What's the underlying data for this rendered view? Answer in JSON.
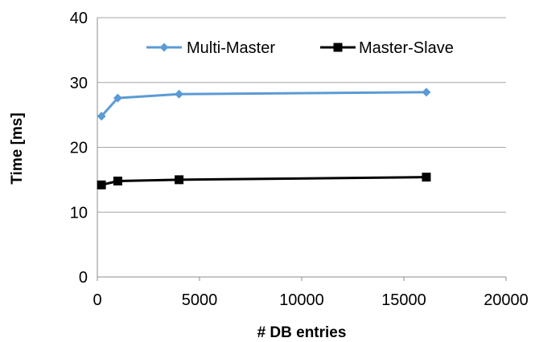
{
  "chart_data": {
    "type": "line",
    "title": "",
    "xlabel": "# DB entries",
    "ylabel": "Time [ms]",
    "xlim": [
      0,
      20000
    ],
    "ylim": [
      0,
      40
    ],
    "x_ticks": [
      0,
      5000,
      10000,
      15000,
      20000
    ],
    "y_ticks": [
      0,
      10,
      20,
      30,
      40
    ],
    "x_tick_labels": [
      "0",
      "5000",
      "10000",
      "15000",
      "20000"
    ],
    "y_tick_labels": [
      "0",
      "10",
      "20",
      "30",
      "40"
    ],
    "grid": "horizontal",
    "legend_position": "top",
    "series": [
      {
        "name": "Multi-Master",
        "color": "#5b9bd5",
        "marker": "diamond",
        "x": [
          200,
          1000,
          4000,
          16100
        ],
        "y": [
          24.8,
          27.6,
          28.2,
          28.5
        ]
      },
      {
        "name": "Master-Slave",
        "color": "#000000",
        "marker": "square",
        "x": [
          200,
          1000,
          4000,
          16100
        ],
        "y": [
          14.2,
          14.8,
          15.0,
          15.4
        ]
      }
    ]
  }
}
